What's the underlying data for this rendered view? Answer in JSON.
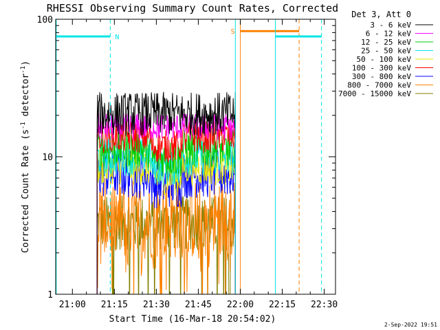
{
  "chart_data": {
    "type": "line",
    "title": "RHESSI Observing Summary Count Rates, Corrected",
    "xlabel": "Start Time (16-Mar-18 20:54:02)",
    "ylabel_main": "Corrected Count Rate (s",
    "ylabel_sup1": "-1",
    "ylabel_mid": " detector",
    "ylabel_sup2": "-1",
    "ylabel_end": ")",
    "x_unit": "minutes since 20:54:02",
    "xlim": [
      0,
      100
    ],
    "ylim": [
      1,
      100
    ],
    "ylog": true,
    "x_ticks": [
      {
        "label": "21:00",
        "x": 5.97
      },
      {
        "label": "21:15",
        "x": 20.97
      },
      {
        "label": "21:30",
        "x": 35.97
      },
      {
        "label": "21:45",
        "x": 50.97
      },
      {
        "label": "22:00",
        "x": 65.97
      },
      {
        "label": "22:15",
        "x": 80.97
      },
      {
        "label": "22:30",
        "x": 95.97
      }
    ],
    "y_ticks": [
      {
        "label": "1",
        "y": 1
      },
      {
        "label": "10",
        "y": 10
      },
      {
        "label": "100",
        "y": 100
      }
    ],
    "legend_header": "Det 3, Att 0",
    "legend_placement": "top-right, outside plot",
    "data_window": [
      14.8,
      64.2
    ],
    "series": [
      {
        "name": "3 - 6 keV",
        "color": "#000000",
        "level": 20.5,
        "spread": 0.16
      },
      {
        "name": "6 - 12 keV",
        "color": "#ff00ff",
        "level": 16.5,
        "spread": 0.1
      },
      {
        "name": "12 - 25 keV",
        "color": "#00cc00",
        "level": 11.5,
        "spread": 0.14
      },
      {
        "name": "25 - 50 keV",
        "color": "#00e5e5",
        "level": 10.0,
        "spread": 0.14
      },
      {
        "name": "50 - 100 keV",
        "color": "#e6e600",
        "level": 8.5,
        "spread": 0.14
      },
      {
        "name": "100 - 300 keV",
        "color": "#ff0000",
        "level": 14.0,
        "spread": 0.12
      },
      {
        "name": "300 - 800 keV",
        "color": "#0000ff",
        "level": 7.5,
        "spread": 0.18
      },
      {
        "name": "800 - 7000 keV",
        "color": "#ff8000",
        "level": 3.5,
        "spread": 0.3
      },
      {
        "name": "7000 - 15000 keV",
        "color": "#808000",
        "level": 3.3,
        "spread": 0.2
      }
    ],
    "markers": [
      {
        "label": "N",
        "color": "#00e5e5",
        "bar_start": 0.2,
        "bar_end": 19.5,
        "y": 75,
        "solid_x": 0.2,
        "dashed_x": 19.5
      },
      {
        "label": "S",
        "color": "#ff8000",
        "bar_start": 66.0,
        "bar_end": 87.0,
        "y": 82,
        "solid_x": 66.0,
        "dashed_x": 87.0
      },
      {
        "label": "",
        "color": "#00e5e5",
        "bar_start": 78.5,
        "bar_end": 95.0,
        "y": 75,
        "solid_x": 78.5,
        "dashed_x": 95.0
      }
    ],
    "extra_lines": [
      {
        "x": 64.2,
        "color": "#00e5e5",
        "style": "solid"
      }
    ],
    "grid": false
  },
  "footer_date": "2-Sep-2022 19:51"
}
